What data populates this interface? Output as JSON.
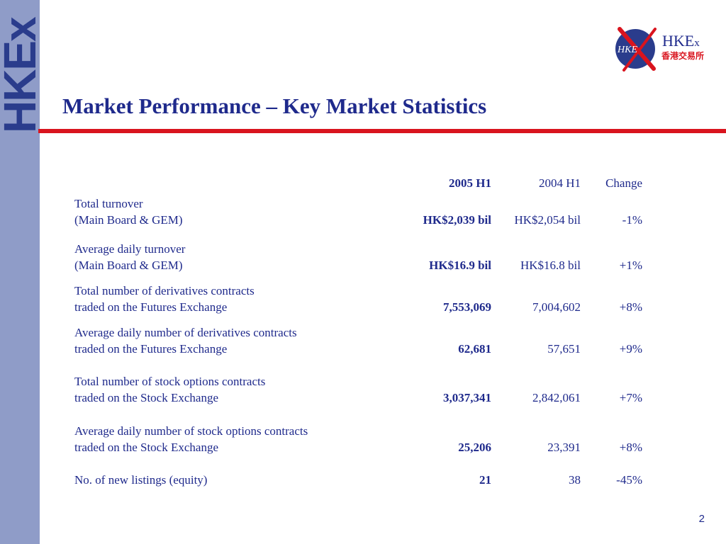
{
  "sidebar": {
    "brand_text": "HKEx"
  },
  "logo": {
    "mark_text": "HKE",
    "name_main": "HKE",
    "name_small": "x",
    "name_zh": "香港交易所"
  },
  "slide": {
    "title": "Market Performance – Key Market Statistics",
    "page_number": "2"
  },
  "colors": {
    "primary": "#1f2a8c",
    "accent_red": "#d9141e",
    "sidebar": "#8f9cc8"
  },
  "table": {
    "headers": {
      "col1": "2005 H1",
      "col2": "2004 H1",
      "col3": "Change"
    },
    "rows": [
      {
        "label_1": "Total turnover",
        "label_2": "(Main Board & GEM)",
        "v2005": "HK$2,039 bil",
        "v2004": "HK$2,054 bil",
        "change": "-1%"
      },
      {
        "label_1": "Average daily turnover",
        "label_2": "(Main Board & GEM)",
        "v2005": "HK$16.9 bil",
        "v2004": "HK$16.8 bil",
        "change": "+1%"
      },
      {
        "label_1": "Total number of derivatives contracts",
        "label_2": "traded on the Futures Exchange",
        "v2005": "7,553,069",
        "v2004": "7,004,602",
        "change": "+8%"
      },
      {
        "label_1": "Average daily number of derivatives contracts",
        "label_2": "traded on the Futures Exchange",
        "v2005": "62,681",
        "v2004": "57,651",
        "change": "+9%"
      },
      {
        "label_1": "Total number of stock options contracts",
        "label_2": "traded on the Stock Exchange",
        "v2005": "3,037,341",
        "v2004": "2,842,061",
        "change": "+7%"
      },
      {
        "label_1": "Average daily number of stock options contracts",
        "label_2": "traded on the Stock Exchange",
        "v2005": "25,206",
        "v2004": "23,391",
        "change": "+8%"
      },
      {
        "label_1": "No. of new listings (equity)",
        "v2005": "21",
        "v2004": "38",
        "change": "-45%"
      }
    ]
  }
}
